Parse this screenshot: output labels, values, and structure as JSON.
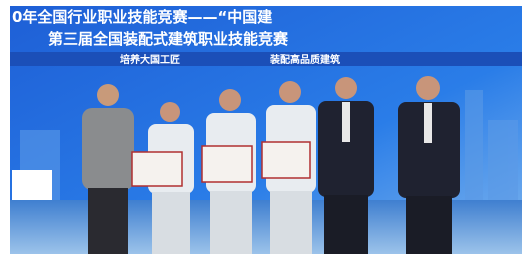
{
  "banner": {
    "line1": "0年全国行业职业技能竞赛——“中国建",
    "line2": "第三届全国装配式建筑职业技能竞赛",
    "slogan_left": "培养大国工匠",
    "slogan_right": "装配高品质建筑"
  }
}
